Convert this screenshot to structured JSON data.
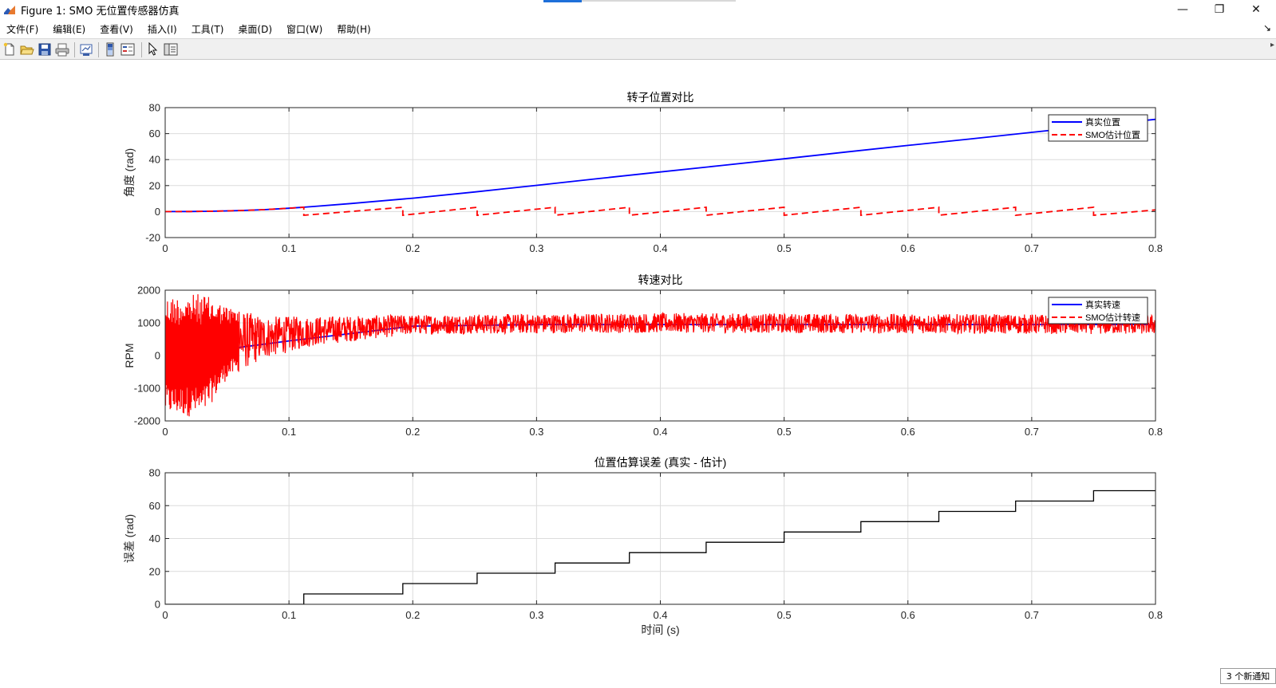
{
  "window": {
    "title": "Figure 1: SMO 无位置传感器仿真",
    "minimize_glyph": "—",
    "restore_glyph": "❐",
    "close_glyph": "✕"
  },
  "menubar": {
    "items": [
      "文件(F)",
      "编辑(E)",
      "查看(V)",
      "插入(I)",
      "工具(T)",
      "桌面(D)",
      "窗口(W)",
      "帮助(H)"
    ],
    "dock_glyph": "↘"
  },
  "toolbar": {
    "buttons": [
      "new-figure-icon",
      "open-file-icon",
      "save-icon",
      "print-icon",
      "link-plot-icon",
      "colorbar-icon",
      "legend-icon",
      "pointer-icon",
      "property-editor-icon"
    ]
  },
  "notification": {
    "text": "3 个新通知"
  },
  "colors": {
    "true": "#0000ff",
    "est": "#ff0000",
    "error": "#000000",
    "grid": "#dcdcdc"
  },
  "chart_data": [
    {
      "type": "line",
      "title": "转子位置对比",
      "xlabel": "",
      "ylabel": "角度 (rad)",
      "xlim": [
        0,
        0.8
      ],
      "ylim": [
        -20,
        80
      ],
      "xticks": [
        "0",
        "0.1",
        "0.2",
        "0.3",
        "0.4",
        "0.5",
        "0.6",
        "0.7",
        "0.8"
      ],
      "yticks": [
        "-20",
        "0",
        "20",
        "40",
        "60",
        "80"
      ],
      "grid": true,
      "legend_position": "top-right",
      "series": [
        {
          "name": "真实位置",
          "style": "solid",
          "color": "#0000ff",
          "x": [
            0,
            0.02,
            0.04,
            0.06,
            0.08,
            0.1,
            0.12,
            0.15,
            0.2,
            0.25,
            0.3,
            0.35,
            0.4,
            0.45,
            0.5,
            0.55,
            0.6,
            0.65,
            0.7,
            0.75,
            0.8
          ],
          "y": [
            0,
            0.05,
            0.3,
            0.8,
            1.5,
            2.6,
            3.9,
            6.2,
            10.3,
            15.1,
            20.2,
            25.4,
            30.5,
            35.5,
            40.6,
            45.8,
            50.9,
            55.8,
            61,
            66,
            71
          ]
        },
        {
          "name": "SMO估计位置",
          "style": "dashed",
          "color": "#ff0000",
          "x": [
            0,
            0.02,
            0.04,
            0.06,
            0.08,
            0.1,
            0.112,
            0.112,
            0.192,
            0.192,
            0.252,
            0.252,
            0.315,
            0.315,
            0.375,
            0.375,
            0.437,
            0.437,
            0.5,
            0.5,
            0.562,
            0.562,
            0.625,
            0.625,
            0.687,
            0.687,
            0.75,
            0.75,
            0.8
          ],
          "y": [
            0,
            0.05,
            0.3,
            0.8,
            1.5,
            2.6,
            3.3,
            -2.8,
            3.3,
            -2.8,
            3.3,
            -2.8,
            3.3,
            -2.8,
            3.3,
            -2.8,
            3.3,
            -2.8,
            3.3,
            -2.8,
            3.3,
            -2.8,
            3.3,
            -2.8,
            3.3,
            -2.8,
            3.3,
            -2.8,
            1.3
          ]
        }
      ]
    },
    {
      "type": "line",
      "title": "转速对比",
      "xlabel": "",
      "ylabel": "RPM",
      "xlim": [
        0,
        0.8
      ],
      "ylim": [
        -2000,
        2000
      ],
      "xticks": [
        "0",
        "0.1",
        "0.2",
        "0.3",
        "0.4",
        "0.5",
        "0.6",
        "0.7",
        "0.8"
      ],
      "yticks": [
        "-2000",
        "-1000",
        "0",
        "1000",
        "2000"
      ],
      "grid": true,
      "legend_position": "top-right",
      "series": [
        {
          "name": "真实转速",
          "style": "solid",
          "color": "#0000ff",
          "x": [
            0,
            0.05,
            0.1,
            0.2,
            0.3,
            0.4,
            0.5,
            0.6,
            0.7,
            0.8
          ],
          "y": [
            0,
            200,
            450,
            900,
            950,
            950,
            950,
            950,
            950,
            950
          ]
        },
        {
          "name": "SMO估计转速",
          "style": "dashed",
          "color": "#ff0000",
          "noise": true,
          "envelope": [
            {
              "x": 0,
              "lo": -1800,
              "hi": 1800
            },
            {
              "x": 0.03,
              "lo": -1900,
              "hi": 1900
            },
            {
              "x": 0.05,
              "lo": -700,
              "hi": 1500
            },
            {
              "x": 0.08,
              "lo": -100,
              "hi": 1200
            },
            {
              "x": 0.12,
              "lo": 300,
              "hi": 1200
            },
            {
              "x": 0.2,
              "lo": 650,
              "hi": 1250
            },
            {
              "x": 0.4,
              "lo": 700,
              "hi": 1300
            },
            {
              "x": 0.8,
              "lo": 650,
              "hi": 1250
            }
          ]
        }
      ]
    },
    {
      "type": "line",
      "title": "位置估算误差 (真实 - 估计)",
      "xlabel": "时间 (s)",
      "ylabel": "误差 (rad)",
      "xlim": [
        0,
        0.8
      ],
      "ylim": [
        0,
        80
      ],
      "xticks": [
        "0",
        "0.1",
        "0.2",
        "0.3",
        "0.4",
        "0.5",
        "0.6",
        "0.7",
        "0.8"
      ],
      "yticks": [
        "0",
        "20",
        "40",
        "60",
        "80"
      ],
      "grid": true,
      "legend_position": "none",
      "series": [
        {
          "name": "",
          "style": "solid",
          "color": "#000000",
          "x": [
            0,
            0.112,
            0.112,
            0.192,
            0.192,
            0.252,
            0.252,
            0.315,
            0.315,
            0.375,
            0.375,
            0.437,
            0.437,
            0.5,
            0.5,
            0.562,
            0.562,
            0.625,
            0.625,
            0.687,
            0.687,
            0.75,
            0.75,
            0.8
          ],
          "y": [
            0,
            0,
            6.3,
            6.3,
            12.6,
            12.6,
            18.9,
            18.9,
            25.1,
            25.1,
            31.4,
            31.4,
            37.7,
            37.7,
            44,
            44,
            50.3,
            50.3,
            56.5,
            56.5,
            62.8,
            62.8,
            69.1,
            69.1
          ]
        }
      ]
    }
  ]
}
